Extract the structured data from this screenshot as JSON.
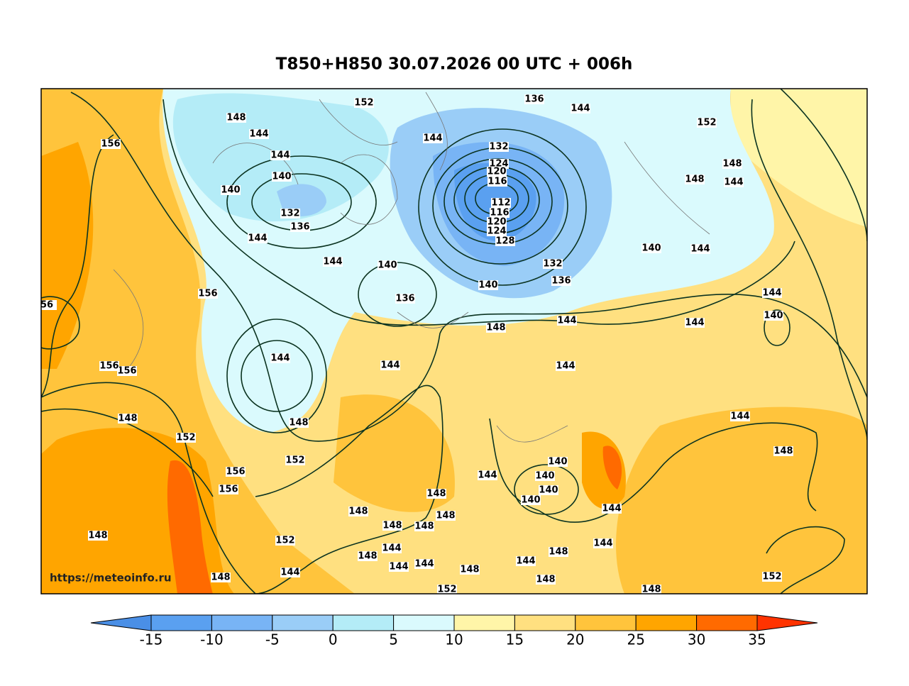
{
  "title": "T850+H850 30.07.2026 00 UTC + 006h",
  "watermark": "https://meteoinfo.ru",
  "contour_labels": [
    148,
    144,
    144,
    140,
    140,
    132,
    136,
    144,
    144,
    152,
    144,
    136,
    144,
    152,
    132,
    124,
    120,
    116,
    112,
    116,
    120,
    124,
    128,
    132,
    136,
    140,
    140,
    136,
    156,
    156,
    148,
    148,
    144,
    140,
    144,
    144,
    140,
    144,
    144,
    148,
    144,
    144,
    144,
    156,
    156,
    148,
    152,
    148,
    152,
    156,
    156,
    144,
    148,
    140,
    140,
    140,
    140,
    144,
    144,
    148,
    148,
    148,
    148,
    152,
    144,
    148,
    144,
    148,
    144,
    144,
    148,
    144,
    148,
    144,
    152,
    148,
    148,
    148,
    148,
    152,
    56
  ],
  "colorbar": {
    "ticks": [
      -15,
      -10,
      -5,
      0,
      5,
      10,
      15,
      20,
      25,
      30,
      35
    ],
    "colors": [
      "#4a8fe6",
      "#5aa0f0",
      "#78b4f5",
      "#9acdf7",
      "#b4ecf7",
      "#dafafd",
      "#fff5a8",
      "#ffe080",
      "#ffc43c",
      "#ffa500",
      "#ff6a00",
      "#ff3300"
    ]
  }
}
